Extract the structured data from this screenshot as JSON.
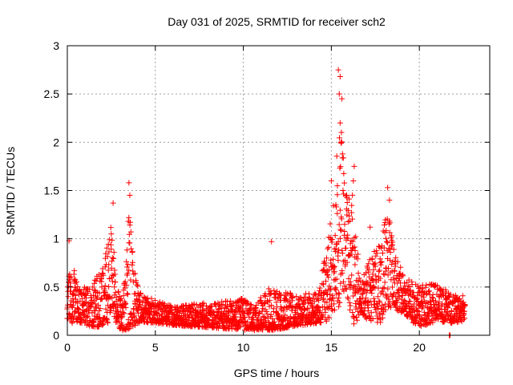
{
  "chart_data": {
    "type": "scatter",
    "title": "Day 031 of 2025, SRMTID for receiver sch2",
    "xlabel": "GPS time / hours",
    "ylabel": "SRMTID / TECUs",
    "xlim": [
      0,
      24
    ],
    "ylim": [
      0,
      3
    ],
    "x_ticks": [
      0,
      5,
      10,
      15,
      20
    ],
    "y_ticks": [
      0,
      0.5,
      1,
      1.5,
      2,
      2.5,
      3
    ],
    "x_tick_labels": [
      "0",
      "5",
      "10",
      "15",
      "20"
    ],
    "y_tick_labels": [
      "0",
      "0.5",
      "1",
      "1.5",
      "2",
      "2.5",
      "3"
    ],
    "grid": true,
    "marker": "+",
    "color": "#ff0000",
    "series": [
      {
        "name": "SRMTID",
        "profile": [
          {
            "x": 0.0,
            "base": 0.3,
            "spread": 0.25
          },
          {
            "x": 0.2,
            "base": 0.4,
            "spread": 0.55
          },
          {
            "x": 0.6,
            "base": 0.28,
            "spread": 0.3
          },
          {
            "x": 1.2,
            "base": 0.25,
            "spread": 0.3
          },
          {
            "x": 1.8,
            "base": 0.3,
            "spread": 0.45
          },
          {
            "x": 2.3,
            "base": 0.45,
            "spread": 0.65
          },
          {
            "x": 2.5,
            "base": 0.65,
            "spread": 0.75
          },
          {
            "x": 2.8,
            "base": 0.25,
            "spread": 0.3
          },
          {
            "x": 3.2,
            "base": 0.2,
            "spread": 0.35
          },
          {
            "x": 3.5,
            "base": 0.5,
            "spread": 1.05
          },
          {
            "x": 3.8,
            "base": 0.35,
            "spread": 0.5
          },
          {
            "x": 4.2,
            "base": 0.25,
            "spread": 0.22
          },
          {
            "x": 6.0,
            "base": 0.18,
            "spread": 0.15
          },
          {
            "x": 8.0,
            "base": 0.18,
            "spread": 0.2
          },
          {
            "x": 10.0,
            "base": 0.18,
            "spread": 0.25
          },
          {
            "x": 10.6,
            "base": 0.12,
            "spread": 0.25
          },
          {
            "x": 11.5,
            "base": 0.22,
            "spread": 0.35
          },
          {
            "x": 13.0,
            "base": 0.22,
            "spread": 0.25
          },
          {
            "x": 14.3,
            "base": 0.25,
            "spread": 0.25
          },
          {
            "x": 14.8,
            "base": 0.5,
            "spread": 0.7
          },
          {
            "x": 15.1,
            "base": 0.7,
            "spread": 0.9
          },
          {
            "x": 15.5,
            "base": 1.1,
            "spread": 1.6
          },
          {
            "x": 15.9,
            "base": 0.8,
            "spread": 0.8
          },
          {
            "x": 16.3,
            "base": 0.6,
            "spread": 1.1
          },
          {
            "x": 16.6,
            "base": 0.35,
            "spread": 0.25
          },
          {
            "x": 17.3,
            "base": 0.4,
            "spread": 0.55
          },
          {
            "x": 17.8,
            "base": 0.45,
            "spread": 0.65
          },
          {
            "x": 18.2,
            "base": 0.7,
            "spread": 0.8
          },
          {
            "x": 18.6,
            "base": 0.5,
            "spread": 0.45
          },
          {
            "x": 19.2,
            "base": 0.35,
            "spread": 0.3
          },
          {
            "x": 20.0,
            "base": 0.25,
            "spread": 0.35
          },
          {
            "x": 21.0,
            "base": 0.3,
            "spread": 0.3
          },
          {
            "x": 21.8,
            "base": 0.25,
            "spread": 0.25
          },
          {
            "x": 22.6,
            "base": 0.25,
            "spread": 0.2
          }
        ],
        "highlights": [
          {
            "x": 0.1,
            "y": 0.98
          },
          {
            "x": 2.5,
            "y": 1.05
          },
          {
            "x": 2.6,
            "y": 1.37
          },
          {
            "x": 3.5,
            "y": 1.58
          },
          {
            "x": 3.55,
            "y": 1.45
          },
          {
            "x": 11.6,
            "y": 0.97
          },
          {
            "x": 15.4,
            "y": 2.75
          },
          {
            "x": 15.5,
            "y": 2.68
          },
          {
            "x": 15.45,
            "y": 2.5
          },
          {
            "x": 15.6,
            "y": 2.45
          },
          {
            "x": 15.5,
            "y": 2.2
          },
          {
            "x": 15.55,
            "y": 2.0
          },
          {
            "x": 15.0,
            "y": 1.6
          },
          {
            "x": 16.3,
            "y": 1.75
          },
          {
            "x": 16.25,
            "y": 1.6
          },
          {
            "x": 18.2,
            "y": 1.53
          },
          {
            "x": 18.3,
            "y": 1.4
          },
          {
            "x": 17.2,
            "y": 1.12
          },
          {
            "x": 21.7,
            "y": 0.0
          },
          {
            "x": 21.75,
            "y": 0.0
          }
        ]
      }
    ]
  }
}
